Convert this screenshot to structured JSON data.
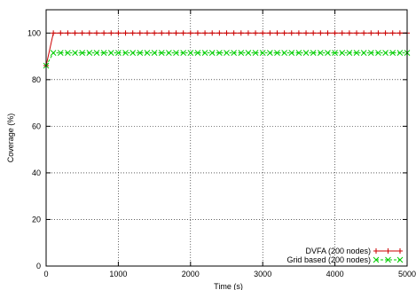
{
  "chart_data": {
    "type": "line",
    "xlabel": "Time (s)",
    "ylabel": "Coverage (%)",
    "xlim": [
      0,
      5000
    ],
    "ylim": [
      0,
      110
    ],
    "x_ticks": [
      0,
      1000,
      2000,
      3000,
      4000,
      5000
    ],
    "y_ticks": [
      0,
      20,
      40,
      60,
      80,
      100
    ],
    "x_tick_labels": [
      "0",
      "1000",
      "2000",
      "3000",
      "4000",
      "5000"
    ],
    "y_tick_labels": [
      "0",
      "20",
      "40",
      "60",
      "80",
      "100"
    ],
    "grid": true,
    "legend_position": "bottom-right",
    "series": [
      {
        "name": "DVFA (200 nodes)",
        "color": "#cc0000",
        "marker": "plus",
        "x_start": 0,
        "x_end": 5000,
        "x_step": 100,
        "initial": {
          "x": 0,
          "y": 86
        },
        "steady_y": 100
      },
      {
        "name": "Grid based (200 nodes)",
        "color": "#00cc00",
        "marker": "cross",
        "x_start": 0,
        "x_end": 5000,
        "x_step": 100,
        "initial": {
          "x": 0,
          "y": 86
        },
        "steady_y": 91.5
      }
    ]
  }
}
